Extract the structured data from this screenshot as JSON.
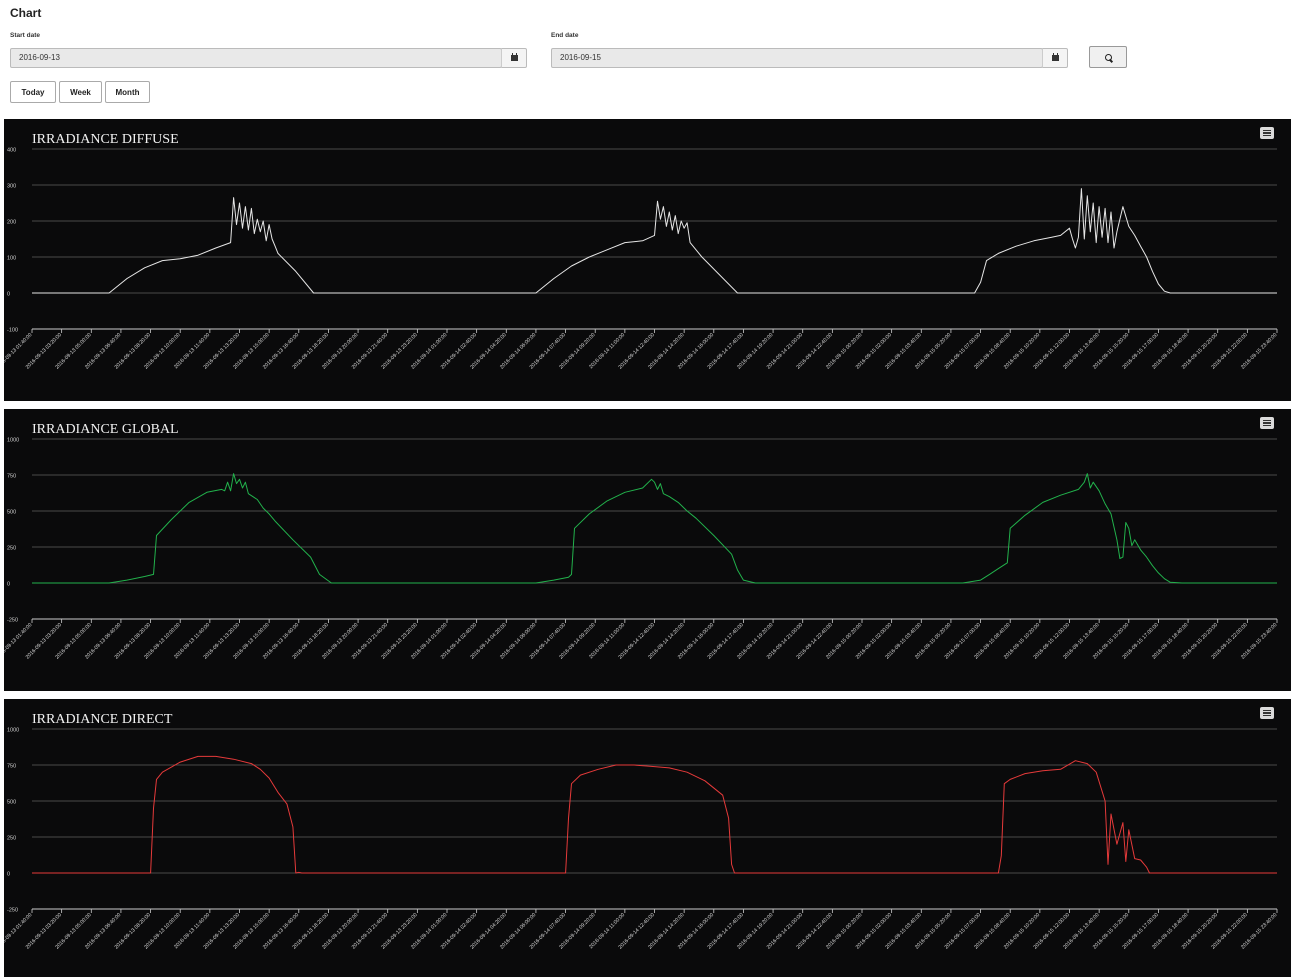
{
  "page": {
    "title": "Chart"
  },
  "filters": {
    "start_label": "Start date",
    "start_value": "2016-09-13",
    "end_label": "End date",
    "end_value": "2016-09-15",
    "search_icon": "search-icon",
    "calendar_icon": "calendar-icon",
    "range_buttons": [
      "Today",
      "Week",
      "Month"
    ]
  },
  "chart_data": [
    {
      "type": "line",
      "title": "IRRADIANCE DIFFUSE",
      "color": "#e6e6e6",
      "ylim": [
        -100,
        400
      ],
      "yticks": [
        400,
        300,
        200,
        100,
        0,
        -100
      ],
      "grid": true,
      "xrange": [
        "2016-09-13 01:40:00",
        "2016-09-15 23:40:00"
      ],
      "xtick_labels": [
        "2016-09-13 01:40:00",
        "2016-09-13 03:20:00",
        "2016-09-13 05:00:00",
        "2016-09-13 06:40:00",
        "2016-09-13 08:20:00",
        "2016-09-13 10:00:00",
        "2016-09-13 11:40:00",
        "2016-09-13 13:20:00",
        "2016-09-13 15:00:00",
        "2016-09-13 16:40:00",
        "2016-09-13 18:20:00",
        "2016-09-13 20:00:00",
        "2016-09-13 21:40:00",
        "2016-09-13 23:20:00",
        "2016-09-14 01:00:00",
        "2016-09-14 02:40:00",
        "2016-09-14 04:20:00",
        "2016-09-14 06:00:00",
        "2016-09-14 07:40:00",
        "2016-09-14 09:20:00",
        "2016-09-14 11:00:00",
        "2016-09-14 12:40:00",
        "2016-09-14 14:20:00",
        "2016-09-14 16:00:00",
        "2016-09-14 17:40:00",
        "2016-09-14 19:20:00",
        "2016-09-14 21:00:00",
        "2016-09-14 22:40:00",
        "2016-09-15 00:20:00",
        "2016-09-15 02:00:00",
        "2016-09-15 03:40:00",
        "2016-09-15 05:20:00",
        "2016-09-15 07:00:00",
        "2016-09-15 08:40:00",
        "2016-09-15 10:20:00",
        "2016-09-15 12:00:00",
        "2016-09-15 13:40:00",
        "2016-09-15 15:20:00",
        "2016-09-15 17:00:00",
        "2016-09-15 18:40:00",
        "2016-09-15 20:20:00",
        "2016-09-15 22:00:00",
        "2016-09-15 23:40:00"
      ],
      "series": [
        {
          "x": [
            "2016-09-13 01:40",
            "2016-09-13 06:00",
            "2016-09-13 07:00",
            "2016-09-13 08:00",
            "2016-09-13 09:00",
            "2016-09-13 10:00",
            "2016-09-13 11:00",
            "2016-09-13 12:00",
            "2016-09-13 12:50",
            "2016-09-13 13:00",
            "2016-09-13 13:10",
            "2016-09-13 13:20",
            "2016-09-13 13:30",
            "2016-09-13 13:40",
            "2016-09-13 13:50",
            "2016-09-13 14:00",
            "2016-09-13 14:10",
            "2016-09-13 14:20",
            "2016-09-13 14:30",
            "2016-09-13 14:40",
            "2016-09-13 14:50",
            "2016-09-13 15:00",
            "2016-09-13 15:10",
            "2016-09-13 15:20",
            "2016-09-13 15:30",
            "2016-09-13 16:30",
            "2016-09-13 17:30",
            "2016-09-13 18:30",
            "2016-09-14 06:00",
            "2016-09-14 07:00",
            "2016-09-14 08:00",
            "2016-09-14 09:00",
            "2016-09-14 10:00",
            "2016-09-14 11:00",
            "2016-09-14 12:00",
            "2016-09-14 12:40",
            "2016-09-14 12:50",
            "2016-09-14 13:00",
            "2016-09-14 13:10",
            "2016-09-14 13:20",
            "2016-09-14 13:30",
            "2016-09-14 13:40",
            "2016-09-14 13:50",
            "2016-09-14 14:00",
            "2016-09-14 14:10",
            "2016-09-14 14:20",
            "2016-09-14 14:30",
            "2016-09-14 14:40",
            "2016-09-14 15:20",
            "2016-09-14 16:20",
            "2016-09-14 17:20",
            "2016-09-14 18:20",
            "2016-09-15 06:00",
            "2016-09-15 06:40",
            "2016-09-15 07:00",
            "2016-09-15 07:20",
            "2016-09-15 08:00",
            "2016-09-15 09:00",
            "2016-09-15 10:00",
            "2016-09-15 11:00",
            "2016-09-15 11:30",
            "2016-09-15 12:00",
            "2016-09-15 12:10",
            "2016-09-15 12:20",
            "2016-09-15 12:30",
            "2016-09-15 12:40",
            "2016-09-15 12:50",
            "2016-09-15 13:00",
            "2016-09-15 13:10",
            "2016-09-15 13:20",
            "2016-09-15 13:30",
            "2016-09-15 13:40",
            "2016-09-15 13:50",
            "2016-09-15 14:00",
            "2016-09-15 14:10",
            "2016-09-15 14:20",
            "2016-09-15 14:30",
            "2016-09-15 14:40",
            "2016-09-15 15:00",
            "2016-09-15 15:20",
            "2016-09-15 15:40",
            "2016-09-15 16:00",
            "2016-09-15 16:20",
            "2016-09-15 16:40",
            "2016-09-15 17:00",
            "2016-09-15 17:20",
            "2016-09-15 17:40",
            "2016-09-15 18:20",
            "2016-09-15 23:40"
          ],
          "y": [
            0,
            0,
            40,
            70,
            90,
            95,
            105,
            125,
            140,
            265,
            190,
            250,
            180,
            240,
            175,
            235,
            165,
            205,
            170,
            200,
            145,
            190,
            150,
            130,
            110,
            60,
            0,
            0,
            0,
            40,
            75,
            100,
            120,
            140,
            145,
            160,
            255,
            205,
            240,
            185,
            225,
            175,
            215,
            165,
            200,
            180,
            195,
            140,
            100,
            50,
            0,
            0,
            0,
            0,
            30,
            90,
            110,
            130,
            145,
            155,
            160,
            180,
            150,
            125,
            155,
            290,
            150,
            270,
            170,
            250,
            140,
            240,
            155,
            235,
            140,
            225,
            125,
            170,
            240,
            185,
            160,
            130,
            100,
            60,
            25,
            5,
            0,
            0,
            0
          ]
        }
      ]
    },
    {
      "type": "line",
      "title": "IRRADIANCE GLOBAL",
      "color": "#22b24c",
      "ylim": [
        -250,
        1000
      ],
      "yticks": [
        1000,
        750,
        500,
        250,
        0,
        -250
      ],
      "grid": true,
      "xrange": [
        "2016-09-13 01:40:00",
        "2016-09-15 23:40:00"
      ],
      "xtick_labels": [
        "2016-09-13 01:40:00",
        "2016-09-13 03:20:00",
        "2016-09-13 05:00:00",
        "2016-09-13 06:40:00",
        "2016-09-13 08:20:00",
        "2016-09-13 10:00:00",
        "2016-09-13 11:40:00",
        "2016-09-13 13:20:00",
        "2016-09-13 15:00:00",
        "2016-09-13 16:40:00",
        "2016-09-13 18:20:00",
        "2016-09-13 20:00:00",
        "2016-09-13 21:40:00",
        "2016-09-13 23:20:00",
        "2016-09-14 01:00:00",
        "2016-09-14 02:40:00",
        "2016-09-14 04:20:00",
        "2016-09-14 06:00:00",
        "2016-09-14 07:40:00",
        "2016-09-14 09:20:00",
        "2016-09-14 11:00:00",
        "2016-09-14 12:40:00",
        "2016-09-14 14:20:00",
        "2016-09-14 16:00:00",
        "2016-09-14 17:40:00",
        "2016-09-14 19:20:00",
        "2016-09-14 21:00:00",
        "2016-09-14 22:40:00",
        "2016-09-15 00:20:00",
        "2016-09-15 02:00:00",
        "2016-09-15 03:40:00",
        "2016-09-15 05:20:00",
        "2016-09-15 07:00:00",
        "2016-09-15 08:40:00",
        "2016-09-15 10:20:00",
        "2016-09-15 12:00:00",
        "2016-09-15 13:40:00",
        "2016-09-15 15:20:00",
        "2016-09-15 17:00:00",
        "2016-09-15 18:40:00",
        "2016-09-15 20:20:00",
        "2016-09-15 22:00:00",
        "2016-09-15 23:40:00"
      ],
      "series": [
        {
          "x": [
            "2016-09-13 01:40",
            "2016-09-13 06:00",
            "2016-09-13 07:00",
            "2016-09-13 08:00",
            "2016-09-13 08:30",
            "2016-09-13 08:40",
            "2016-09-13 09:30",
            "2016-09-13 10:30",
            "2016-09-13 11:30",
            "2016-09-13 12:20",
            "2016-09-13 12:30",
            "2016-09-13 12:40",
            "2016-09-13 12:50",
            "2016-09-13 13:00",
            "2016-09-13 13:10",
            "2016-09-13 13:20",
            "2016-09-13 13:30",
            "2016-09-13 13:40",
            "2016-09-13 13:50",
            "2016-09-13 14:20",
            "2016-09-13 14:40",
            "2016-09-13 15:00",
            "2016-09-13 15:20",
            "2016-09-13 16:20",
            "2016-09-13 17:20",
            "2016-09-13 17:50",
            "2016-09-13 18:30",
            "2016-09-14 06:00",
            "2016-09-14 07:00",
            "2016-09-14 07:50",
            "2016-09-14 08:00",
            "2016-09-14 08:10",
            "2016-09-14 09:00",
            "2016-09-14 10:00",
            "2016-09-14 11:00",
            "2016-09-14 12:00",
            "2016-09-14 12:30",
            "2016-09-14 12:40",
            "2016-09-14 12:50",
            "2016-09-14 13:00",
            "2016-09-14 13:10",
            "2016-09-14 13:30",
            "2016-09-14 14:00",
            "2016-09-14 14:30",
            "2016-09-14 15:00",
            "2016-09-14 16:00",
            "2016-09-14 17:00",
            "2016-09-14 17:20",
            "2016-09-14 17:40",
            "2016-09-14 18:20",
            "2016-09-15 06:00",
            "2016-09-15 07:00",
            "2016-09-15 07:30",
            "2016-09-15 08:00",
            "2016-09-15 08:30",
            "2016-09-15 08:40",
            "2016-09-15 09:30",
            "2016-09-15 10:30",
            "2016-09-15 11:30",
            "2016-09-15 12:30",
            "2016-09-15 12:50",
            "2016-09-15 13:00",
            "2016-09-15 13:10",
            "2016-09-15 13:20",
            "2016-09-15 13:40",
            "2016-09-15 14:00",
            "2016-09-15 14:20",
            "2016-09-15 14:40",
            "2016-09-15 14:50",
            "2016-09-15 15:00",
            "2016-09-15 15:10",
            "2016-09-15 15:20",
            "2016-09-15 15:30",
            "2016-09-15 15:40",
            "2016-09-15 16:00",
            "2016-09-15 16:20",
            "2016-09-15 16:40",
            "2016-09-15 17:00",
            "2016-09-15 17:20",
            "2016-09-15 17:40",
            "2016-09-15 18:20",
            "2016-09-15 23:40"
          ],
          "y": [
            0,
            0,
            20,
            45,
            60,
            330,
            440,
            560,
            630,
            650,
            640,
            700,
            640,
            760,
            690,
            720,
            660,
            700,
            620,
            580,
            520,
            480,
            430,
            300,
            180,
            60,
            0,
            0,
            20,
            40,
            60,
            380,
            480,
            570,
            630,
            660,
            720,
            700,
            650,
            690,
            620,
            600,
            560,
            500,
            450,
            330,
            200,
            90,
            20,
            0,
            0,
            20,
            60,
            100,
            140,
            380,
            470,
            560,
            610,
            650,
            700,
            760,
            660,
            700,
            640,
            550,
            480,
            300,
            170,
            180,
            420,
            380,
            260,
            300,
            230,
            180,
            120,
            70,
            30,
            5,
            0,
            0
          ]
        }
      ]
    },
    {
      "type": "line",
      "title": "IRRADIANCE DIRECT",
      "color": "#e53a3a",
      "ylim": [
        -250,
        1000
      ],
      "yticks": [
        1000,
        750,
        500,
        250,
        0,
        -250
      ],
      "grid": true,
      "xrange": [
        "2016-09-13 01:40:00",
        "2016-09-15 23:40:00"
      ],
      "xtick_labels": [
        "2016-09-13 01:40:00",
        "2016-09-13 03:20:00",
        "2016-09-13 05:00:00",
        "2016-09-13 06:40:00",
        "2016-09-13 08:20:00",
        "2016-09-13 10:00:00",
        "2016-09-13 11:40:00",
        "2016-09-13 13:20:00",
        "2016-09-13 15:00:00",
        "2016-09-13 16:40:00",
        "2016-09-13 18:20:00",
        "2016-09-13 20:00:00",
        "2016-09-13 21:40:00",
        "2016-09-13 23:20:00",
        "2016-09-14 01:00:00",
        "2016-09-14 02:40:00",
        "2016-09-14 04:20:00",
        "2016-09-14 06:00:00",
        "2016-09-14 07:40:00",
        "2016-09-14 09:20:00",
        "2016-09-14 11:00:00",
        "2016-09-14 12:40:00",
        "2016-09-14 14:20:00",
        "2016-09-14 16:00:00",
        "2016-09-14 17:40:00",
        "2016-09-14 19:20:00",
        "2016-09-14 21:00:00",
        "2016-09-14 22:40:00",
        "2016-09-15 00:20:00",
        "2016-09-15 02:00:00",
        "2016-09-15 03:40:00",
        "2016-09-15 05:20:00",
        "2016-09-15 07:00:00",
        "2016-09-15 08:40:00",
        "2016-09-15 10:20:00",
        "2016-09-15 12:00:00",
        "2016-09-15 13:40:00",
        "2016-09-15 15:20:00",
        "2016-09-15 17:00:00",
        "2016-09-15 18:40:00",
        "2016-09-15 20:20:00",
        "2016-09-15 22:00:00",
        "2016-09-15 23:40:00"
      ],
      "series": [
        {
          "x": [
            "2016-09-13 01:40",
            "2016-09-13 08:20",
            "2016-09-13 08:30",
            "2016-09-13 08:40",
            "2016-09-13 09:00",
            "2016-09-13 10:00",
            "2016-09-13 11:00",
            "2016-09-13 12:00",
            "2016-09-13 13:00",
            "2016-09-13 14:00",
            "2016-09-13 14:30",
            "2016-09-13 15:00",
            "2016-09-13 15:30",
            "2016-09-13 16:00",
            "2016-09-13 16:20",
            "2016-09-13 16:30",
            "2016-09-13 16:40",
            "2016-09-13 16:50",
            "2016-09-14 07:40",
            "2016-09-14 07:50",
            "2016-09-14 08:00",
            "2016-09-14 08:30",
            "2016-09-14 09:30",
            "2016-09-14 10:30",
            "2016-09-14 11:30",
            "2016-09-14 12:30",
            "2016-09-14 13:30",
            "2016-09-14 14:30",
            "2016-09-14 15:30",
            "2016-09-14 16:30",
            "2016-09-14 16:50",
            "2016-09-14 17:00",
            "2016-09-14 17:10",
            "2016-09-14 17:20",
            "2016-09-15 08:00",
            "2016-09-15 08:10",
            "2016-09-15 08:20",
            "2016-09-15 08:40",
            "2016-09-15 09:30",
            "2016-09-15 10:30",
            "2016-09-15 11:30",
            "2016-09-15 12:20",
            "2016-09-15 13:00",
            "2016-09-15 13:30",
            "2016-09-15 14:00",
            "2016-09-15 14:10",
            "2016-09-15 14:20",
            "2016-09-15 14:40",
            "2016-09-15 15:00",
            "2016-09-15 15:10",
            "2016-09-15 15:20",
            "2016-09-15 15:40",
            "2016-09-15 16:00",
            "2016-09-15 16:20",
            "2016-09-15 16:30",
            "2016-09-15 16:40",
            "2016-09-15 23:40"
          ],
          "y": [
            0,
            0,
            450,
            650,
            700,
            770,
            810,
            810,
            790,
            760,
            720,
            660,
            560,
            480,
            320,
            0,
            5,
            0,
            0,
            380,
            620,
            680,
            720,
            750,
            750,
            740,
            730,
            700,
            640,
            540,
            380,
            60,
            0,
            0,
            0,
            120,
            620,
            650,
            690,
            710,
            720,
            780,
            760,
            700,
            500,
            60,
            410,
            200,
            350,
            80,
            300,
            100,
            90,
            40,
            0,
            0,
            0
          ]
        }
      ]
    }
  ]
}
